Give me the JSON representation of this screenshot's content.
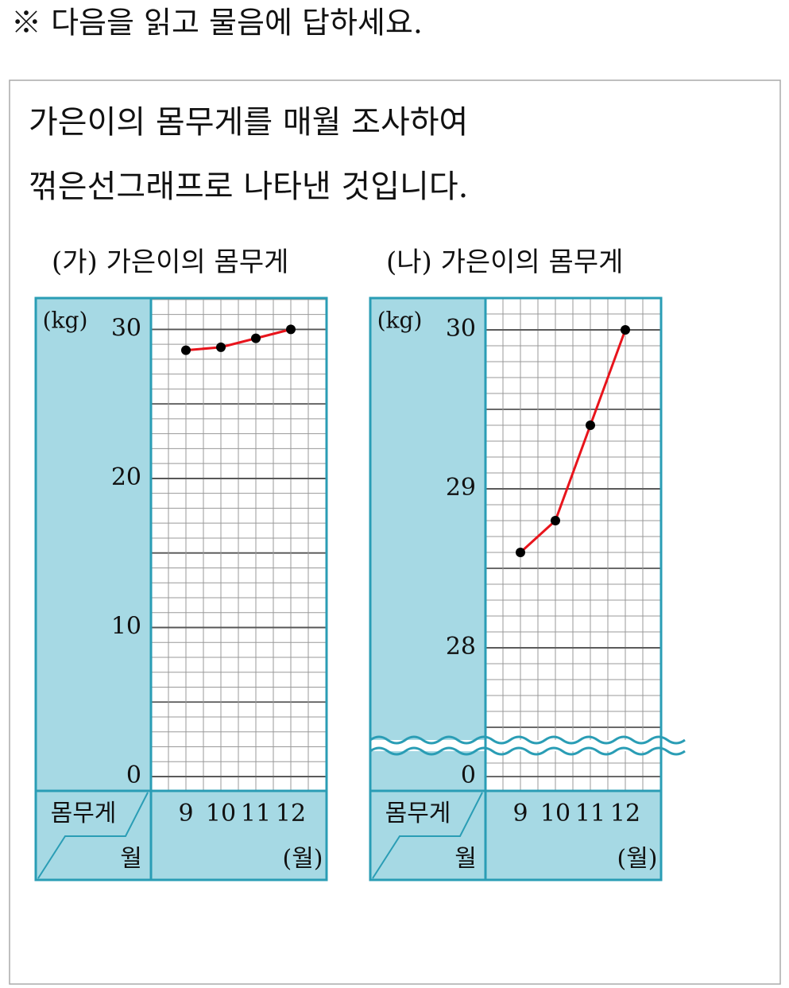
{
  "header": {
    "instruction": "※ 다음을 읽고 물음에 답하세요."
  },
  "passage": {
    "lines": [
      "가은이의 몸무게를 매월 조사하여",
      "꺾은선그래프로 나타낸 것입니다."
    ]
  },
  "chart_data": [
    {
      "type": "line",
      "title": "(가) 가은이의 몸무게",
      "y_unit_label": "(kg)",
      "row_label": "몸무게",
      "column_label": "월",
      "x_unit_label": "(월)",
      "categories": [
        "9",
        "10",
        "11",
        "12"
      ],
      "values": [
        28.6,
        28.8,
        29.4,
        30
      ],
      "color": "#e8141c",
      "ylim": [
        0,
        32.1
      ],
      "yticks": [
        0,
        10,
        20,
        30
      ],
      "grid": true,
      "grid_step": 1
    },
    {
      "type": "line",
      "title": "(나) 가은이의 몸무게",
      "y_unit_label": "(kg)",
      "row_label": "몸무게",
      "column_label": "월",
      "x_unit_label": "(월)",
      "categories": [
        "9",
        "10",
        "11",
        "12"
      ],
      "values": [
        28.6,
        28.8,
        29.4,
        30
      ],
      "color": "#e8141c",
      "ylim": [
        0,
        30.2
      ],
      "axis_break": 27.4,
      "yticks": [
        0,
        28,
        29,
        30
      ],
      "grid": true,
      "grid_step": 0.1
    }
  ]
}
